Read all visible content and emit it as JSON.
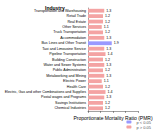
{
  "chart_data": {
    "type": "bar",
    "orientation": "horizontal",
    "title": "Industry",
    "x_label": "Proportionate Mortality Ratio (PMR)",
    "categories": [
      "Transportation and Warehousing",
      "Retail Trade",
      "Real Estate",
      "Other Services",
      "Truck Transportation",
      "Accommodation",
      "Bus Lines and Other Transit",
      "Taxi and Limousine Service",
      "Pipeline Transportation",
      "Building Construction",
      "Water and Sewer Systems",
      "Public Administration",
      "Metalworking and Mining",
      "Electric Power",
      "Health Care",
      "Electric, Gas and other Combinations and Supplies",
      "Postal wages and Programs",
      "Savings Institutions",
      "Chemical Industries"
    ],
    "series": [
      {
        "name": "p > 0.05",
        "color": "#f4a3a3",
        "values": [
          1.3,
          1.2,
          1.2,
          1.1,
          1.2,
          1.3,
          null,
          1.3,
          1.4,
          1.2,
          1.3,
          1.2,
          1.3,
          1.1,
          1.2,
          1.4,
          1.3,
          1.2,
          1.2
        ]
      },
      {
        "name": "p < 0.05",
        "color": "#9999ff",
        "values": [
          null,
          null,
          null,
          null,
          null,
          null,
          1.9,
          null,
          null,
          null,
          null,
          null,
          null,
          null,
          null,
          null,
          null,
          null,
          null
        ]
      }
    ],
    "xlim": [
      0,
      4
    ],
    "xticks": [
      0,
      1,
      2,
      3,
      4
    ],
    "grid": false,
    "tick_labels": "y",
    "data_labels": true,
    "legend": "bottom-right"
  }
}
